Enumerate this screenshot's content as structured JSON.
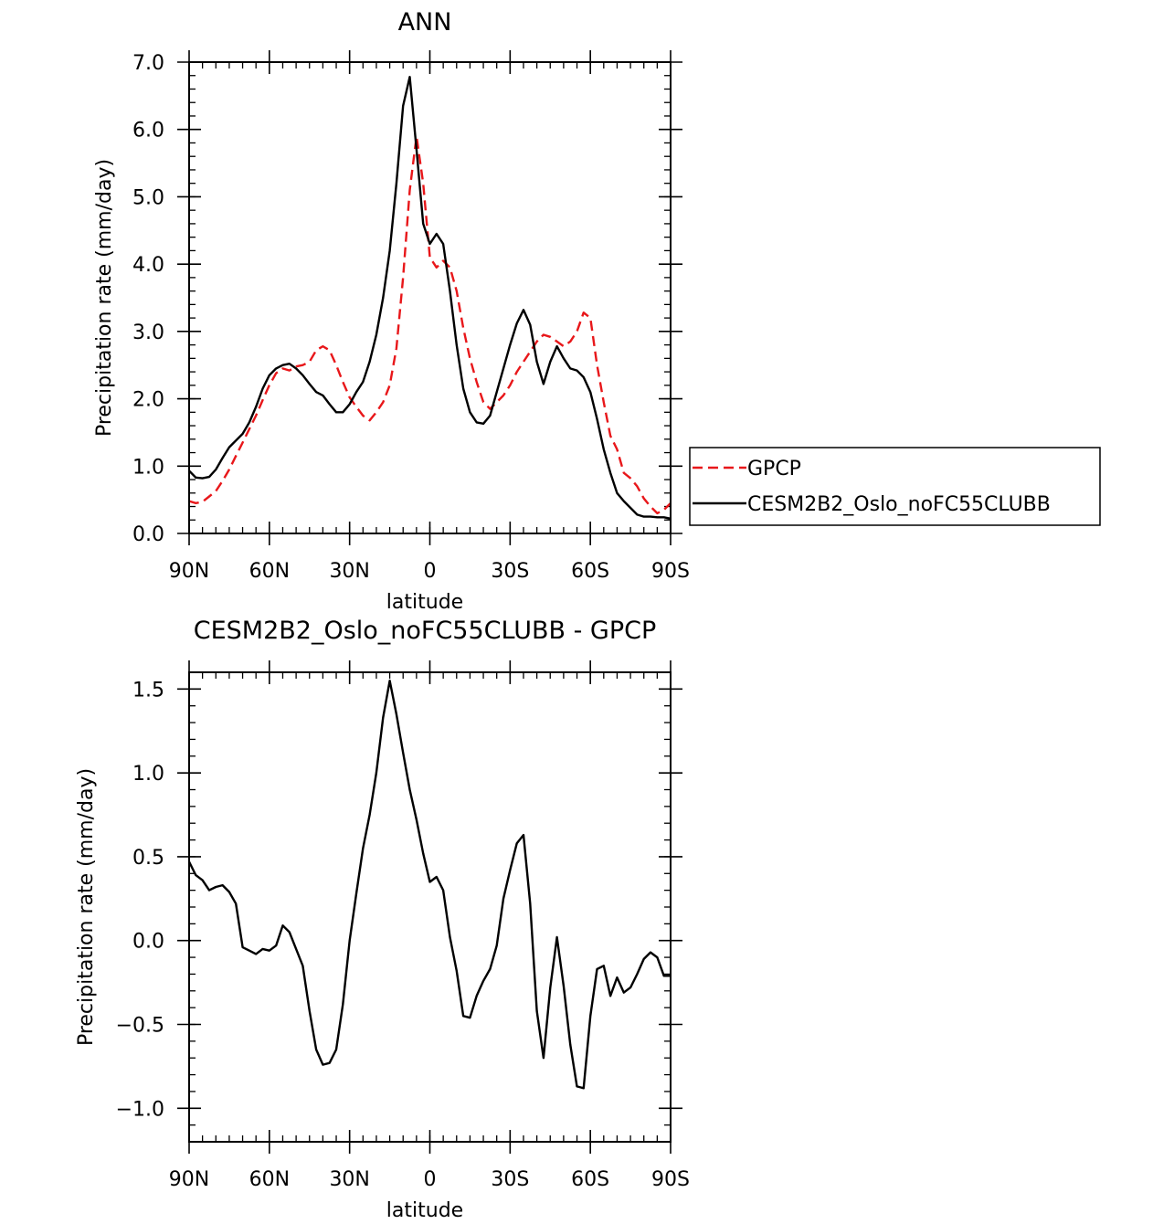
{
  "chart_data": [
    {
      "type": "line",
      "title": "ANN",
      "xlabel": "latitude",
      "ylabel": "Precipitation rate (mm/day)",
      "xlim": [
        -90,
        90
      ],
      "ylim": [
        0,
        7
      ],
      "xticks": [
        {
          "value": -90,
          "label": "90N"
        },
        {
          "value": -60,
          "label": "60N"
        },
        {
          "value": -30,
          "label": "30N"
        },
        {
          "value": 0,
          "label": "0"
        },
        {
          "value": 30,
          "label": "30S"
        },
        {
          "value": 60,
          "label": "60S"
        },
        {
          "value": 90,
          "label": "90S"
        }
      ],
      "yticks": [
        {
          "value": 0,
          "label": "0.0"
        },
        {
          "value": 1,
          "label": "1.0"
        },
        {
          "value": 2,
          "label": "2.0"
        },
        {
          "value": 3,
          "label": "3.0"
        },
        {
          "value": 4,
          "label": "4.0"
        },
        {
          "value": 5,
          "label": "5.0"
        },
        {
          "value": 6,
          "label": "6.0"
        },
        {
          "value": 7,
          "label": "7.0"
        }
      ],
      "grid": false,
      "legend_position": "right",
      "series": [
        {
          "name": "GPCP",
          "color": "#e8171a",
          "dash": "dashed",
          "x": [
            -90,
            -87.5,
            -85,
            -82.5,
            -80,
            -77.5,
            -75,
            -72.5,
            -70,
            -67.5,
            -65,
            -62.5,
            -60,
            -57.5,
            -55,
            -52.5,
            -50,
            -47.5,
            -45,
            -42.5,
            -40,
            -37.5,
            -35,
            -32.5,
            -30,
            -27.5,
            -25,
            -22.5,
            -20,
            -17.5,
            -15,
            -12.5,
            -10,
            -7.5,
            -5,
            -2.5,
            0,
            2.5,
            5,
            7.5,
            10,
            12.5,
            15,
            17.5,
            20,
            22.5,
            25,
            27.5,
            30,
            32.5,
            35,
            37.5,
            40,
            42.5,
            45,
            47.5,
            50,
            52.5,
            55,
            57.5,
            60,
            62.5,
            65,
            67.5,
            70,
            72.5,
            75,
            77.5,
            80,
            82.5,
            85,
            87.5,
            90
          ],
          "y": [
            0.48,
            0.45,
            0.47,
            0.55,
            0.63,
            0.78,
            0.95,
            1.15,
            1.35,
            1.55,
            1.75,
            1.98,
            2.2,
            2.38,
            2.45,
            2.42,
            2.48,
            2.5,
            2.55,
            2.72,
            2.78,
            2.72,
            2.5,
            2.25,
            2.02,
            1.88,
            1.75,
            1.68,
            1.8,
            1.95,
            2.2,
            2.75,
            3.8,
            5.1,
            5.9,
            5.2,
            4.1,
            3.95,
            4.05,
            3.95,
            3.6,
            3.05,
            2.6,
            2.25,
            1.95,
            1.85,
            1.95,
            2.05,
            2.2,
            2.4,
            2.55,
            2.7,
            2.85,
            2.95,
            2.92,
            2.85,
            2.78,
            2.85,
            3.0,
            3.28,
            3.2,
            2.5,
            1.95,
            1.45,
            1.25,
            0.9,
            0.82,
            0.7,
            0.52,
            0.4,
            0.3,
            0.35,
            0.45
          ]
        },
        {
          "name": "CESM2B2_Oslo_noFC55CLUBB",
          "color": "#000000",
          "dash": "solid",
          "x": [
            -90,
            -87.5,
            -85,
            -82.5,
            -80,
            -77.5,
            -75,
            -72.5,
            -70,
            -67.5,
            -65,
            -62.5,
            -60,
            -57.5,
            -55,
            -52.5,
            -50,
            -47.5,
            -45,
            -42.5,
            -40,
            -37.5,
            -35,
            -32.5,
            -30,
            -27.5,
            -25,
            -22.5,
            -20,
            -17.5,
            -15,
            -12.5,
            -10,
            -7.5,
            -5,
            -2.5,
            0,
            2.5,
            5,
            7.5,
            10,
            12.5,
            15,
            17.5,
            20,
            22.5,
            25,
            27.5,
            30,
            32.5,
            35,
            37.5,
            40,
            42.5,
            45,
            47.5,
            50,
            52.5,
            55,
            57.5,
            60,
            62.5,
            65,
            67.5,
            70,
            72.5,
            75,
            77.5,
            80,
            82.5,
            85,
            87.5,
            90
          ],
          "y": [
            0.93,
            0.83,
            0.82,
            0.84,
            0.95,
            1.12,
            1.28,
            1.38,
            1.48,
            1.65,
            1.88,
            2.15,
            2.35,
            2.45,
            2.5,
            2.52,
            2.45,
            2.35,
            2.22,
            2.1,
            2.05,
            1.92,
            1.8,
            1.8,
            1.92,
            2.1,
            2.25,
            2.55,
            2.95,
            3.5,
            4.2,
            5.2,
            6.35,
            6.78,
            5.7,
            4.6,
            4.3,
            4.45,
            4.3,
            3.6,
            2.8,
            2.15,
            1.8,
            1.65,
            1.63,
            1.75,
            2.1,
            2.45,
            2.8,
            3.12,
            3.32,
            3.1,
            2.55,
            2.22,
            2.55,
            2.78,
            2.6,
            2.45,
            2.42,
            2.32,
            2.1,
            1.7,
            1.25,
            0.9,
            0.6,
            0.48,
            0.38,
            0.28,
            0.25,
            0.25,
            0.24,
            0.24,
            0.22
          ]
        }
      ]
    },
    {
      "type": "line",
      "title": "CESM2B2_Oslo_noFC55CLUBB - GPCP",
      "xlabel": "latitude",
      "ylabel": "Precipitation rate (mm/day)",
      "xlim": [
        -90,
        90
      ],
      "ylim": [
        -1.2,
        1.6
      ],
      "xticks": [
        {
          "value": -90,
          "label": "90N"
        },
        {
          "value": -60,
          "label": "60N"
        },
        {
          "value": -30,
          "label": "30N"
        },
        {
          "value": 0,
          "label": "0"
        },
        {
          "value": 30,
          "label": "30S"
        },
        {
          "value": 60,
          "label": "60S"
        },
        {
          "value": 90,
          "label": "90S"
        }
      ],
      "yticks": [
        {
          "value": -1.0,
          "label": "−1.0"
        },
        {
          "value": -0.5,
          "label": "−0.5"
        },
        {
          "value": 0.0,
          "label": "0.0"
        },
        {
          "value": 0.5,
          "label": "0.5"
        },
        {
          "value": 1.0,
          "label": "1.0"
        },
        {
          "value": 1.5,
          "label": "1.5"
        }
      ],
      "grid": false,
      "series": [
        {
          "color": "#000000",
          "dash": "solid",
          "x": [
            -90,
            -87.5,
            -85,
            -82.5,
            -80,
            -77.5,
            -75,
            -72.5,
            -70,
            -67.5,
            -65,
            -62.5,
            -60,
            -57.5,
            -55,
            -52.5,
            -50,
            -47.5,
            -45,
            -42.5,
            -40,
            -37.5,
            -35,
            -32.5,
            -30,
            -27.5,
            -25,
            -22.5,
            -20,
            -17.5,
            -15,
            -12.5,
            -10,
            -7.5,
            -5,
            -2.5,
            0,
            2.5,
            5,
            7.5,
            10,
            12.5,
            15,
            17.5,
            20,
            22.5,
            25,
            27.5,
            30,
            32.5,
            35,
            37.5,
            40,
            42.5,
            45,
            47.5,
            50,
            52.5,
            55,
            57.5,
            60,
            62.5,
            65,
            67.5,
            70,
            72.5,
            75,
            77.5,
            80,
            82.5,
            85,
            87.5,
            90
          ],
          "y": [
            0.47,
            0.39,
            0.36,
            0.3,
            0.32,
            0.33,
            0.29,
            0.22,
            -0.04,
            -0.06,
            -0.08,
            -0.05,
            -0.06,
            -0.03,
            0.09,
            0.05,
            -0.05,
            -0.15,
            -0.42,
            -0.65,
            -0.74,
            -0.73,
            -0.65,
            -0.38,
            0.0,
            0.28,
            0.55,
            0.75,
            1.0,
            1.33,
            1.55,
            1.35,
            1.12,
            0.9,
            0.72,
            0.52,
            0.35,
            0.38,
            0.3,
            0.02,
            -0.18,
            -0.45,
            -0.46,
            -0.33,
            -0.24,
            -0.17,
            -0.03,
            0.25,
            0.42,
            0.58,
            0.63,
            0.22,
            -0.42,
            -0.7,
            -0.28,
            0.02,
            -0.27,
            -0.62,
            -0.87,
            -0.88,
            -0.45,
            -0.17,
            -0.15,
            -0.33,
            -0.22,
            -0.31,
            -0.28,
            -0.2,
            -0.11,
            -0.07,
            -0.1,
            -0.21,
            -0.21
          ]
        }
      ]
    }
  ]
}
